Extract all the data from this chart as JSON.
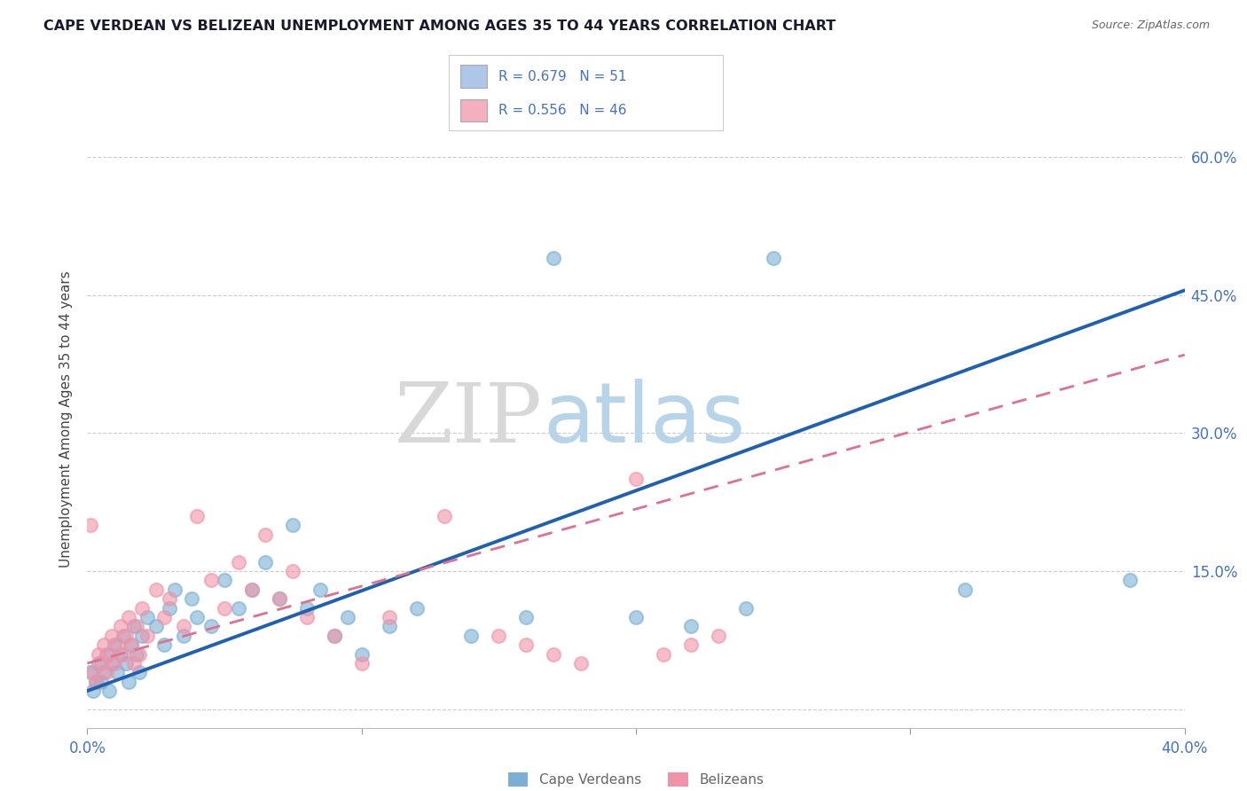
{
  "title": "CAPE VERDEAN VS BELIZEAN UNEMPLOYMENT AMONG AGES 35 TO 44 YEARS CORRELATION CHART",
  "source": "Source: ZipAtlas.com",
  "ylabel": "Unemployment Among Ages 35 to 44 years",
  "xlim": [
    0.0,
    0.4
  ],
  "ylim": [
    -0.02,
    0.65
  ],
  "xticks": [
    0.0,
    0.1,
    0.2,
    0.3,
    0.4
  ],
  "xticklabels": [
    "0.0%",
    "",
    "",
    "",
    "40.0%"
  ],
  "ytick_positions": [
    0.0,
    0.15,
    0.3,
    0.45,
    0.6
  ],
  "ytick_right_labels": [
    "",
    "15.0%",
    "30.0%",
    "45.0%",
    "60.0%"
  ],
  "legend_items": [
    {
      "label": "R = 0.679   N = 51",
      "color": "#aec6e8"
    },
    {
      "label": "R = 0.556   N = 46",
      "color": "#f4afc0"
    }
  ],
  "watermark_zip": "ZIP",
  "watermark_atlas": "atlas",
  "blue_color": "#7bafd4",
  "pink_color": "#f093a8",
  "blue_line_color": "#2060b0",
  "pink_line_color": "#e07090",
  "cv_line": [
    0.0,
    0.02,
    0.4,
    0.455
  ],
  "bz_line": [
    0.0,
    0.05,
    0.4,
    0.385
  ],
  "cv_points": [
    [
      0.001,
      0.04
    ],
    [
      0.002,
      0.02
    ],
    [
      0.003,
      0.03
    ],
    [
      0.004,
      0.05
    ],
    [
      0.005,
      0.03
    ],
    [
      0.006,
      0.04
    ],
    [
      0.007,
      0.06
    ],
    [
      0.008,
      0.02
    ],
    [
      0.009,
      0.05
    ],
    [
      0.01,
      0.07
    ],
    [
      0.011,
      0.04
    ],
    [
      0.012,
      0.06
    ],
    [
      0.013,
      0.08
    ],
    [
      0.014,
      0.05
    ],
    [
      0.015,
      0.03
    ],
    [
      0.016,
      0.07
    ],
    [
      0.017,
      0.09
    ],
    [
      0.018,
      0.06
    ],
    [
      0.019,
      0.04
    ],
    [
      0.02,
      0.08
    ],
    [
      0.022,
      0.1
    ],
    [
      0.025,
      0.09
    ],
    [
      0.028,
      0.07
    ],
    [
      0.03,
      0.11
    ],
    [
      0.032,
      0.13
    ],
    [
      0.035,
      0.08
    ],
    [
      0.038,
      0.12
    ],
    [
      0.04,
      0.1
    ],
    [
      0.045,
      0.09
    ],
    [
      0.05,
      0.14
    ],
    [
      0.055,
      0.11
    ],
    [
      0.06,
      0.13
    ],
    [
      0.065,
      0.16
    ],
    [
      0.07,
      0.12
    ],
    [
      0.075,
      0.2
    ],
    [
      0.08,
      0.11
    ],
    [
      0.085,
      0.13
    ],
    [
      0.09,
      0.08
    ],
    [
      0.095,
      0.1
    ],
    [
      0.1,
      0.06
    ],
    [
      0.11,
      0.09
    ],
    [
      0.12,
      0.11
    ],
    [
      0.14,
      0.08
    ],
    [
      0.16,
      0.1
    ],
    [
      0.17,
      0.49
    ],
    [
      0.2,
      0.1
    ],
    [
      0.22,
      0.09
    ],
    [
      0.24,
      0.11
    ],
    [
      0.25,
      0.49
    ],
    [
      0.32,
      0.13
    ],
    [
      0.38,
      0.14
    ]
  ],
  "bz_points": [
    [
      0.001,
      0.2
    ],
    [
      0.002,
      0.04
    ],
    [
      0.003,
      0.03
    ],
    [
      0.004,
      0.06
    ],
    [
      0.005,
      0.05
    ],
    [
      0.006,
      0.07
    ],
    [
      0.007,
      0.04
    ],
    [
      0.008,
      0.06
    ],
    [
      0.009,
      0.08
    ],
    [
      0.01,
      0.05
    ],
    [
      0.011,
      0.07
    ],
    [
      0.012,
      0.09
    ],
    [
      0.013,
      0.06
    ],
    [
      0.014,
      0.08
    ],
    [
      0.015,
      0.1
    ],
    [
      0.016,
      0.07
    ],
    [
      0.017,
      0.05
    ],
    [
      0.018,
      0.09
    ],
    [
      0.019,
      0.06
    ],
    [
      0.02,
      0.11
    ],
    [
      0.022,
      0.08
    ],
    [
      0.025,
      0.13
    ],
    [
      0.028,
      0.1
    ],
    [
      0.03,
      0.12
    ],
    [
      0.035,
      0.09
    ],
    [
      0.04,
      0.21
    ],
    [
      0.045,
      0.14
    ],
    [
      0.05,
      0.11
    ],
    [
      0.055,
      0.16
    ],
    [
      0.06,
      0.13
    ],
    [
      0.065,
      0.19
    ],
    [
      0.07,
      0.12
    ],
    [
      0.075,
      0.15
    ],
    [
      0.08,
      0.1
    ],
    [
      0.09,
      0.08
    ],
    [
      0.1,
      0.05
    ],
    [
      0.11,
      0.1
    ],
    [
      0.13,
      0.21
    ],
    [
      0.15,
      0.08
    ],
    [
      0.16,
      0.07
    ],
    [
      0.17,
      0.06
    ],
    [
      0.18,
      0.05
    ],
    [
      0.2,
      0.25
    ],
    [
      0.21,
      0.06
    ],
    [
      0.22,
      0.07
    ],
    [
      0.23,
      0.08
    ]
  ]
}
